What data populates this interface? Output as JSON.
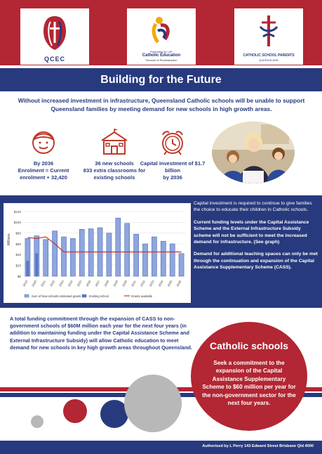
{
  "logos": {
    "qcec": {
      "label": "QCEC"
    },
    "catholic_education": {
      "tagline": "Educating for Life",
      "name": "Catholic Education",
      "sub": "Diocese of Rockhampton"
    },
    "parents": {
      "name": "CATHOLIC SCHOOL PARENTS",
      "sub": "QUEENSLAND"
    }
  },
  "title": "Building for the Future",
  "intro": "Without increased investment in infrastructure, Queensland Catholic schools will be unable to support Queensland families by meeting demand for new schools in high growth areas.",
  "stats": [
    {
      "icon": "child-face-icon",
      "line1": "By 2036",
      "line2": "Enrolment = Current enrolment + 32,420"
    },
    {
      "icon": "school-building-icon",
      "line1": "36 new schools",
      "line2": "833 extra classrooms for existing schools"
    },
    {
      "icon": "alarm-clock-icon",
      "line1": "Capital investment of $1.7 billion",
      "line2": "by 2036"
    }
  ],
  "side_text": {
    "p1": "Capital investment is required to continue to give families the choice to educate their children in Catholic schools.",
    "p2": "Current funding levels under the Capital Assistance Scheme and the External Infrastructure Subsidy scheme will not be sufficient to meet the increased demand for infrastructure. (See graph)",
    "p3": "Demand for additional teaching spaces can only be met through the continuation and expansion of the Capital Assistance Supplementary Scheme (CASS)."
  },
  "bottom_text": "A total funding commitment through the expansion of CASS to non-government schools of $60M million each year for the next four years (in addition to maintaining funding under the Capital Assistance Scheme and External Infrastructure Subsidy) will allow Catholic education to meet demand for new schools in key high growth areas throughout Queensland.",
  "callout": {
    "heading": "Catholic schools",
    "body": "Seek a commitment to the expansion of the Capital Assistance Supplementary Scheme to $60 million per year for the non-government sector for the next four years."
  },
  "footer": "Authorised by L Perry 143 Edward Street Brisbane Qld 4000",
  "colors": {
    "red": "#b32633",
    "navy": "#283a7e",
    "bar": "#8ea6de",
    "bar_edge": "#3c5aa6",
    "line": "#c0392b"
  },
  "chart_data": {
    "type": "bar",
    "ylabel": "Millions",
    "ylim": [
      0,
      120
    ],
    "yticks": [
      "$0",
      "$20",
      "$40",
      "$60",
      "$80",
      "$100",
      "$120"
    ],
    "categories": [
      "2019",
      "2020",
      "2021",
      "2022",
      "2023",
      "2024",
      "2025",
      "2026",
      "2027",
      "2028",
      "2029",
      "2030",
      "2031",
      "2032",
      "2033",
      "2034",
      "2035",
      "2036"
    ],
    "series": [
      {
        "name": "Sum of New schools estimated grants",
        "values": [
          70,
          75,
          68,
          84,
          73,
          70,
          87,
          88,
          90,
          80,
          108,
          98,
          78,
          60,
          73,
          65,
          60,
          42
        ]
      },
      {
        "name": "Existing school",
        "values": [
          28,
          42,
          0,
          0,
          0,
          0,
          0,
          0,
          0,
          0,
          0,
          0,
          0,
          0,
          0,
          0,
          0,
          0
        ]
      },
      {
        "name": "Grants available",
        "values": [
          72,
          70,
          73,
          60,
          45,
          45,
          45,
          45,
          45,
          45,
          45,
          45,
          45,
          45,
          45,
          45,
          45,
          45
        ]
      }
    ],
    "legend": "bottom",
    "grid": true
  }
}
